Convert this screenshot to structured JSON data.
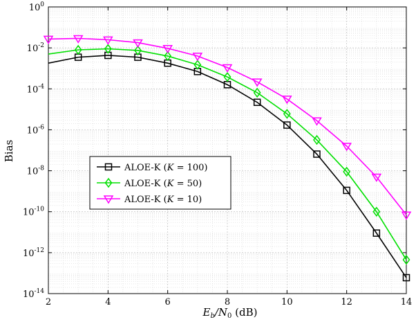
{
  "chart_data": {
    "type": "line",
    "xlabel_main": "E",
    "xlabel_sub1": "b",
    "xlabel_mid": "/N",
    "xlabel_sub2": "0",
    "xlabel_unit": " (dB)",
    "ylabel": "Bias",
    "xlim": [
      2,
      14
    ],
    "ylim_log10": [
      -14,
      0
    ],
    "yscale": "log",
    "grid": true,
    "x_ticks": [
      "2",
      "4",
      "6",
      "8",
      "10",
      "12",
      "14"
    ],
    "y_ticks": [
      {
        "base": "10",
        "exp": "0"
      },
      {
        "base": "10",
        "exp": "-2"
      },
      {
        "base": "10",
        "exp": "-4"
      },
      {
        "base": "10",
        "exp": "-6"
      },
      {
        "base": "10",
        "exp": "-8"
      },
      {
        "base": "10",
        "exp": "-10"
      },
      {
        "base": "10",
        "exp": "-12"
      },
      {
        "base": "10",
        "exp": "-14"
      }
    ],
    "legend_position": "center-left",
    "x": [
      2,
      3,
      4,
      5,
      6,
      7,
      8,
      9,
      10,
      11,
      12,
      13,
      14
    ],
    "series": [
      {
        "name_prefix": "ALOE-K  (",
        "name_var": "K",
        "name_suffix": " = 100)",
        "color": "#000000",
        "marker": "square",
        "values": [
          0.0018,
          0.0035,
          0.0043,
          0.0035,
          0.0018,
          0.0007,
          0.00016,
          2.2e-05,
          1.7e-06,
          6.5e-08,
          1.1e-09,
          9e-12,
          6e-14
        ],
        "markers_at": [
          3,
          4,
          5,
          6,
          7,
          8,
          9,
          10,
          11,
          12,
          13,
          14
        ]
      },
      {
        "name_prefix": "ALOE-K  (",
        "name_var": "K",
        "name_suffix": " = 50)",
        "color": "#00e000",
        "marker": "diamond",
        "values": [
          0.005,
          0.008,
          0.009,
          0.0075,
          0.004,
          0.0015,
          0.00038,
          6.5e-05,
          6e-06,
          3.2e-07,
          9e-09,
          1e-10,
          4.5e-13
        ],
        "markers_at": [
          3,
          4,
          5,
          6,
          7,
          8,
          9,
          10,
          11,
          12,
          13,
          14
        ]
      },
      {
        "name_prefix": "ALOE-K  (",
        "name_var": "K",
        "name_suffix": " = 10)",
        "color": "#ff00ff",
        "marker": "triangle-down",
        "values": [
          0.027,
          0.029,
          0.025,
          0.018,
          0.0095,
          0.004,
          0.0011,
          0.00022,
          3.2e-05,
          2.8e-06,
          1.6e-07,
          5e-09,
          7e-11
        ],
        "markers_at": [
          2,
          3,
          4,
          5,
          6,
          7,
          8,
          9,
          10,
          11,
          12,
          13,
          14
        ]
      }
    ]
  }
}
